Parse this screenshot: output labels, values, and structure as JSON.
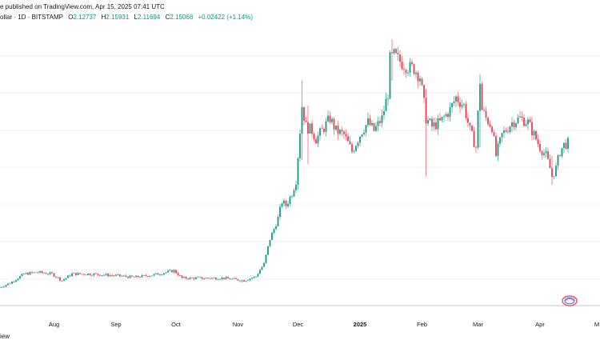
{
  "header": {
    "line1": "e published on TradingView.com, Apr 15, 2025 07:41 UTC",
    "symbol": "ollar · 1D · BITSTAMP",
    "open_label": "O",
    "open": "2.12737",
    "high_label": "H",
    "high": "2.15931",
    "low_label": "L",
    "low": "2.11694",
    "close_label": "C",
    "close": "2.15068",
    "change": "+0.02422 (+1.14%)"
  },
  "footer": {
    "text": "iew"
  },
  "colors": {
    "up": "#089981",
    "down": "#f23645",
    "grid": "#e0e3eb",
    "text": "#131722"
  },
  "logo": {
    "icon": "tradingview-logo-icon"
  },
  "chart_data": {
    "type": "candlestick",
    "title": "",
    "xlabel": "",
    "ylabel": "",
    "x_ticks": [
      "Aug",
      "Sep",
      "Oct",
      "Nov",
      "Dec",
      "2025",
      "Feb",
      "Mar",
      "Apr",
      "M"
    ],
    "x_tick_dates": [
      "2024-08-01",
      "2024-09-01",
      "2024-10-01",
      "2024-11-01",
      "2024-12-01",
      "2025-01-01",
      "2025-02-01",
      "2025-03-01",
      "2025-04-01",
      "2025-05-01"
    ],
    "x_range": [
      "2024-07-05",
      "2025-05-01"
    ],
    "y_range": [
      0.2,
      3.6
    ],
    "grid": "horizontal",
    "anchors": [
      [
        "2024-07-05",
        0.42
      ],
      [
        "2024-07-10",
        0.47
      ],
      [
        "2024-07-17",
        0.58
      ],
      [
        "2024-07-24",
        0.6
      ],
      [
        "2024-07-31",
        0.58
      ],
      [
        "2024-08-05",
        0.5
      ],
      [
        "2024-08-10",
        0.58
      ],
      [
        "2024-08-20",
        0.58
      ],
      [
        "2024-09-01",
        0.56
      ],
      [
        "2024-09-10",
        0.54
      ],
      [
        "2024-09-20",
        0.57
      ],
      [
        "2024-09-30",
        0.62
      ],
      [
        "2024-10-04",
        0.53
      ],
      [
        "2024-10-15",
        0.53
      ],
      [
        "2024-10-25",
        0.53
      ],
      [
        "2024-11-04",
        0.5
      ],
      [
        "2024-11-10",
        0.55
      ],
      [
        "2024-11-12",
        0.63
      ],
      [
        "2024-11-14",
        0.7
      ],
      [
        "2024-11-17",
        1.0
      ],
      [
        "2024-11-19",
        1.12
      ],
      [
        "2024-11-21",
        1.25
      ],
      [
        "2024-11-23",
        1.45
      ],
      [
        "2024-11-25",
        1.4
      ],
      [
        "2024-11-28",
        1.55
      ],
      [
        "2024-11-30",
        1.7
      ],
      [
        "2024-12-02",
        2.3
      ],
      [
        "2024-12-03",
        2.6
      ],
      [
        "2024-12-05",
        2.35
      ],
      [
        "2024-12-08",
        2.3
      ],
      [
        "2024-12-10",
        2.2
      ],
      [
        "2024-12-13",
        2.3
      ],
      [
        "2024-12-17",
        2.45
      ],
      [
        "2024-12-20",
        2.3
      ],
      [
        "2024-12-24",
        2.25
      ],
      [
        "2024-12-28",
        2.05
      ],
      [
        "2025-01-02",
        2.3
      ],
      [
        "2025-01-05",
        2.4
      ],
      [
        "2025-01-08",
        2.3
      ],
      [
        "2025-01-12",
        2.45
      ],
      [
        "2025-01-15",
        2.75
      ],
      [
        "2025-01-16",
        3.15
      ],
      [
        "2025-01-18",
        3.2
      ],
      [
        "2025-01-20",
        3.15
      ],
      [
        "2025-01-23",
        3.1
      ],
      [
        "2025-01-26",
        3.05
      ],
      [
        "2025-01-28",
        3.05
      ],
      [
        "2025-01-31",
        2.95
      ],
      [
        "2025-02-02",
        2.62
      ],
      [
        "2025-02-03",
        2.45
      ],
      [
        "2025-02-06",
        2.35
      ],
      [
        "2025-02-10",
        2.4
      ],
      [
        "2025-02-15",
        2.55
      ],
      [
        "2025-02-18",
        2.7
      ],
      [
        "2025-02-22",
        2.6
      ],
      [
        "2025-02-25",
        2.3
      ],
      [
        "2025-02-28",
        2.1
      ],
      [
        "2025-03-02",
        2.9
      ],
      [
        "2025-03-03",
        2.55
      ],
      [
        "2025-03-05",
        2.45
      ],
      [
        "2025-03-08",
        2.35
      ],
      [
        "2025-03-10",
        2.0
      ],
      [
        "2025-03-13",
        2.25
      ],
      [
        "2025-03-18",
        2.4
      ],
      [
        "2025-03-22",
        2.45
      ],
      [
        "2025-03-26",
        2.4
      ],
      [
        "2025-03-29",
        2.25
      ],
      [
        "2025-04-01",
        2.1
      ],
      [
        "2025-04-04",
        2.0
      ],
      [
        "2025-04-06",
        1.85
      ],
      [
        "2025-04-07",
        1.75
      ],
      [
        "2025-04-09",
        1.85
      ],
      [
        "2025-04-11",
        2.05
      ],
      [
        "2025-04-13",
        2.13
      ],
      [
        "2025-04-15",
        2.15
      ]
    ],
    "spikes": [
      [
        "2024-12-03",
        2.9,
        1.95
      ],
      [
        "2024-12-06",
        2.6,
        1.9
      ],
      [
        "2025-01-17",
        3.4,
        2.9
      ],
      [
        "2025-02-03",
        2.8,
        1.75
      ],
      [
        "2025-03-02",
        2.98,
        2.1
      ],
      [
        "2025-04-07",
        2.0,
        1.65
      ]
    ]
  }
}
